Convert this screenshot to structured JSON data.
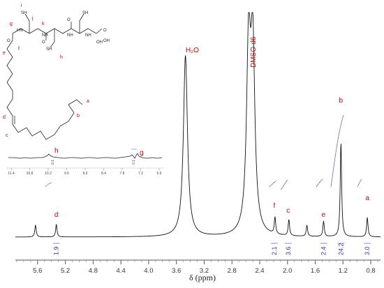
{
  "chart_data": {
    "type": "line",
    "title": "",
    "xlabel": "δ (ppm)",
    "ylabel": "",
    "xlim": [
      5.92,
      0.66
    ],
    "x_reversed": true,
    "x_ticks": [
      5.6,
      5.2,
      4.8,
      4.4,
      4.0,
      3.6,
      3.2,
      2.8,
      2.4,
      2.0,
      1.6,
      1.2,
      0.8
    ],
    "x_tick_labels": [
      "5.6",
      "5.2",
      "4.8",
      "4.4",
      "4.0",
      "3.6",
      "3.2",
      "2.8",
      "2.4",
      "2.0",
      "1.6",
      "1.2",
      "0.8"
    ],
    "peaks": [
      {
        "shift": 5.63,
        "height": 0.085
      },
      {
        "shift": 5.33,
        "height": 0.09
      },
      {
        "shift": 3.47,
        "height": 1.3
      },
      {
        "shift": 2.56,
        "height": 1.3
      },
      {
        "shift": 2.5,
        "height": 1.3
      },
      {
        "shift": 2.18,
        "height": 0.12
      },
      {
        "shift": 1.98,
        "height": 0.115
      },
      {
        "shift": 1.72,
        "height": 0.08
      },
      {
        "shift": 1.48,
        "height": 0.11
      },
      {
        "shift": 1.23,
        "height": 0.68
      },
      {
        "shift": 0.85,
        "height": 0.14
      }
    ],
    "solvent_labels": [
      {
        "text": "H₂O",
        "shift": 3.47
      },
      {
        "text": "DMSO-d6",
        "shift": 2.5
      }
    ],
    "peak_labels": [
      {
        "letter": "d",
        "shift": 5.33
      },
      {
        "letter": "f",
        "shift": 2.19
      },
      {
        "letter": "c",
        "shift": 1.99
      },
      {
        "letter": "e",
        "shift": 1.48
      },
      {
        "letter": "b",
        "shift": 1.23
      },
      {
        "letter": "a",
        "shift": 0.85
      }
    ],
    "integrals": [
      {
        "shift": 5.33,
        "value": "1.9"
      },
      {
        "shift": 2.19,
        "value": "2.1"
      },
      {
        "shift": 1.99,
        "value": "3.6"
      },
      {
        "shift": 1.48,
        "value": "2.4"
      },
      {
        "shift": 1.23,
        "value": "24.2"
      },
      {
        "shift": 0.85,
        "value": "3.0"
      }
    ],
    "inset": {
      "x_tick_labels": [
        "11.4",
        "10.8",
        "10.2",
        "9.6",
        "9.0",
        "8.4",
        "7.8",
        "7.2",
        "6.6"
      ],
      "peak_labels": [
        {
          "letter": "h",
          "shift": 10.2
        },
        {
          "letter": "g",
          "shift": 7.2
        }
      ],
      "integrals": [
        "0.1",
        "0.1"
      ]
    },
    "structure_labels": [
      "a",
      "b",
      "c",
      "d",
      "e",
      "f",
      "g",
      "h",
      "i",
      "j",
      "k"
    ],
    "structure_atoms": [
      "HN",
      "NH",
      "NH",
      "NH",
      "SH",
      "SH",
      "SH",
      "O",
      "O",
      "O",
      "O",
      "OH",
      "OH"
    ]
  }
}
